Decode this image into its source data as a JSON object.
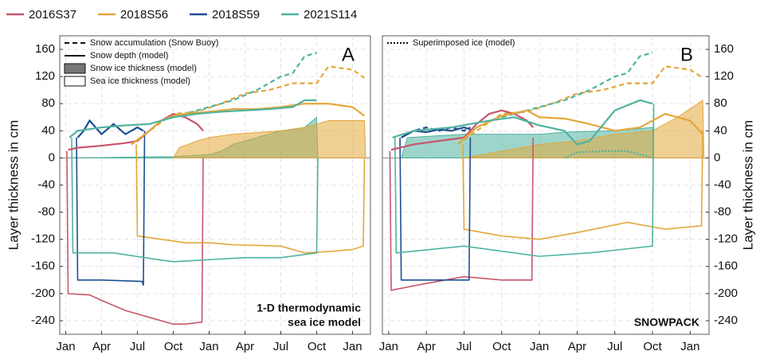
{
  "legend": [
    {
      "name": "2016S37",
      "color": "#c8566b"
    },
    {
      "name": "2018S56",
      "color": "#e3a73b"
    },
    {
      "name": "2018S59",
      "color": "#1d4f91"
    },
    {
      "name": "2021S114",
      "color": "#4fb3a0"
    }
  ],
  "chart_data": [
    {
      "type": "line",
      "panel": "A",
      "y_label": "Layer thickness in cm",
      "y_axis_side": "left",
      "annotation": [
        "1-D thermodynamic",
        "sea ice model"
      ],
      "style_legend": [
        {
          "label": "Snow accumulation (Snow Buoy)",
          "style": "dashed"
        },
        {
          "label": "Snow depth (model)",
          "style": "solid"
        },
        {
          "label": "Snow ice thickness (model)",
          "style": "fill"
        },
        {
          "label": "Sea ice thickness (model)",
          "style": "ice"
        }
      ],
      "xlim": [
        -0.5,
        25.5
      ],
      "xticks": [
        {
          "value": 0,
          "label": "Jan"
        },
        {
          "value": 3,
          "label": "Apr"
        },
        {
          "value": 6,
          "label": "Jul"
        },
        {
          "value": 9,
          "label": "Oct"
        },
        {
          "value": 12,
          "label": "Jan"
        },
        {
          "value": 15,
          "label": "Apr"
        },
        {
          "value": 18,
          "label": "Jul"
        },
        {
          "value": 21,
          "label": "Oct"
        },
        {
          "value": 24,
          "label": "Jan"
        }
      ],
      "ylim": [
        -260,
        180
      ],
      "yticks": [
        160,
        120,
        80,
        40,
        0,
        -40,
        -80,
        -120,
        -160,
        -200,
        -240
      ],
      "grid": true,
      "series": [
        {
          "name": "2021S114",
          "color": "#4fb3a0",
          "style": "fill",
          "x": [
            0.3,
            9,
            12,
            13,
            14,
            16,
            18,
            20,
            21,
            21.1
          ],
          "values": [
            0,
            2,
            5,
            10,
            20,
            30,
            40,
            45,
            60,
            0
          ]
        },
        {
          "name": "2018S56",
          "color": "#e3a73b",
          "style": "fill",
          "x": [
            9,
            9.5,
            11,
            12,
            14,
            18,
            20,
            21,
            22,
            25,
            25.1
          ],
          "values": [
            0,
            15,
            25,
            30,
            35,
            40,
            45,
            50,
            55,
            55,
            0
          ]
        },
        {
          "name": "2016S37",
          "color": "#c8566b",
          "style": "ice",
          "x": [
            0.1,
            0.2,
            2,
            3,
            5,
            7,
            9,
            10,
            11.4,
            11.5
          ],
          "values": [
            10,
            -200,
            -202,
            -210,
            -225,
            -235,
            -245,
            -245,
            -242,
            0
          ]
        },
        {
          "name": "2018S56",
          "color": "#e3a73b",
          "style": "ice",
          "x": [
            5.9,
            6,
            8,
            10,
            12,
            14,
            18,
            20,
            22,
            24,
            24.9,
            25
          ],
          "values": [
            20,
            -115,
            -120,
            -125,
            -125,
            -128,
            -130,
            -140,
            -138,
            -135,
            -130,
            0
          ]
        },
        {
          "name": "2018S59",
          "color": "#1d4f91",
          "style": "ice",
          "x": [
            0.9,
            1,
            3,
            6.4,
            6.5,
            6.6
          ],
          "values": [
            30,
            -180,
            -180,
            -182,
            -188,
            40
          ]
        },
        {
          "name": "2021S114",
          "color": "#4fb3a0",
          "style": "ice",
          "x": [
            0.5,
            0.6,
            4,
            7,
            9,
            12,
            15,
            18,
            21,
            21.1
          ],
          "values": [
            30,
            -140,
            -140,
            -148,
            -153,
            -150,
            -147,
            -147,
            -140,
            0
          ]
        },
        {
          "name": "2018S56",
          "color": "#e3a73b",
          "style": "dashed",
          "x": [
            5.5,
            7,
            9,
            11,
            13,
            15,
            17,
            19,
            21,
            22,
            24,
            25
          ],
          "values": [
            20,
            40,
            65,
            68,
            80,
            95,
            100,
            110,
            110,
            135,
            130,
            118
          ]
        },
        {
          "name": "2021S114",
          "color": "#4fb3a0",
          "style": "dashed",
          "x": [
            9,
            12,
            14,
            16,
            18,
            19,
            20,
            21
          ],
          "values": [
            60,
            75,
            85,
            100,
            120,
            125,
            150,
            155
          ]
        },
        {
          "name": "2016S37",
          "color": "#c8566b",
          "style": "solid",
          "x": [
            0.2,
            1,
            3,
            5,
            6,
            7,
            8,
            9,
            10,
            11,
            11.5
          ],
          "values": [
            12,
            15,
            18,
            22,
            25,
            40,
            55,
            65,
            60,
            50,
            40
          ]
        },
        {
          "name": "2018S56",
          "color": "#e3a73b",
          "style": "solid",
          "x": [
            5.5,
            7,
            8,
            9,
            10,
            12,
            14,
            16,
            18,
            20,
            22,
            24,
            25
          ],
          "values": [
            20,
            40,
            55,
            62,
            65,
            68,
            72,
            72,
            75,
            80,
            80,
            75,
            62
          ]
        },
        {
          "name": "2018S59",
          "color": "#1d4f91",
          "style": "solid",
          "x": [
            1,
            1.5,
            2,
            3,
            4,
            5,
            6,
            6.5
          ],
          "values": [
            30,
            40,
            55,
            35,
            50,
            35,
            45,
            40
          ]
        },
        {
          "name": "2021S114",
          "color": "#4fb3a0",
          "style": "solid",
          "x": [
            0.3,
            1,
            3,
            5,
            7,
            9,
            11,
            13,
            15,
            17,
            19,
            20,
            21
          ],
          "values": [
            30,
            40,
            45,
            48,
            50,
            60,
            65,
            68,
            70,
            72,
            75,
            85,
            85
          ]
        }
      ]
    },
    {
      "type": "line",
      "panel": "B",
      "y_label": "Layer thickness in cm",
      "y_axis_side": "right",
      "annotation": [
        "SNOWPACK"
      ],
      "style_legend": [
        {
          "label": "Superimposed ice (model)",
          "style": "dotted"
        }
      ],
      "xlim": [
        -0.5,
        25.5
      ],
      "xticks": [
        {
          "value": 0,
          "label": "Jan"
        },
        {
          "value": 3,
          "label": "Apr"
        },
        {
          "value": 6,
          "label": "Jul"
        },
        {
          "value": 9,
          "label": "Oct"
        },
        {
          "value": 12,
          "label": "Jan"
        },
        {
          "value": 15,
          "label": "Apr"
        },
        {
          "value": 18,
          "label": "Jul"
        },
        {
          "value": 21,
          "label": "Oct"
        },
        {
          "value": 24,
          "label": "Jan"
        }
      ],
      "ylim": [
        -260,
        180
      ],
      "yticks": [
        160,
        120,
        80,
        40,
        0,
        -40,
        -80,
        -120,
        -160,
        -200,
        -240
      ],
      "grid": true,
      "series": [
        {
          "name": "2021S114",
          "color": "#4fb3a0",
          "style": "fill",
          "x": [
            1,
            1.5,
            6,
            12,
            14,
            18,
            21,
            21.1
          ],
          "values": [
            0,
            30,
            35,
            35,
            38,
            40,
            45,
            0
          ]
        },
        {
          "name": "2018S56",
          "color": "#e3a73b",
          "style": "fill",
          "x": [
            6,
            12,
            15,
            18,
            21,
            23,
            25,
            25.1
          ],
          "values": [
            0,
            20,
            25,
            35,
            40,
            60,
            85,
            0
          ]
        },
        {
          "name": "2021S114",
          "color": "#4fb3a0",
          "style": "dotted",
          "x": [
            14,
            15,
            17,
            19,
            20,
            21
          ],
          "values": [
            0,
            8,
            10,
            10,
            5,
            0
          ]
        },
        {
          "name": "2016S37",
          "color": "#c8566b",
          "style": "ice",
          "x": [
            0.1,
            0.2,
            3,
            6,
            9,
            11.4,
            11.5
          ],
          "values": [
            10,
            -195,
            -185,
            -175,
            -180,
            -180,
            30
          ]
        },
        {
          "name": "2018S56",
          "color": "#e3a73b",
          "style": "ice",
          "x": [
            5.9,
            6,
            9,
            12,
            15,
            19,
            22,
            24.9,
            25
          ],
          "values": [
            20,
            -105,
            -115,
            -120,
            -110,
            -95,
            -105,
            -100,
            40
          ]
        },
        {
          "name": "2018S59",
          "color": "#1d4f91",
          "style": "ice",
          "x": [
            0.9,
            1,
            6.4,
            6.5
          ],
          "values": [
            30,
            -180,
            -180,
            30
          ]
        },
        {
          "name": "2021S114",
          "color": "#4fb3a0",
          "style": "ice",
          "x": [
            0.5,
            0.6,
            6,
            12,
            16,
            21,
            21.1
          ],
          "values": [
            30,
            -140,
            -130,
            -145,
            -140,
            -130,
            80
          ]
        },
        {
          "name": "2018S56",
          "color": "#e3a73b",
          "style": "dashed",
          "x": [
            5.5,
            7,
            9,
            11,
            13,
            15,
            17,
            19,
            21,
            22,
            24,
            25
          ],
          "values": [
            20,
            40,
            65,
            68,
            80,
            95,
            100,
            110,
            110,
            135,
            130,
            118
          ]
        },
        {
          "name": "2021S114",
          "color": "#4fb3a0",
          "style": "dashed",
          "x": [
            9,
            12,
            14,
            16,
            18,
            19,
            20,
            21
          ],
          "values": [
            60,
            75,
            85,
            100,
            120,
            125,
            150,
            155
          ]
        },
        {
          "name": "2018S59",
          "color": "#1d4f91",
          "style": "dashed",
          "x": [
            1,
            2,
            3,
            4,
            5,
            6,
            6.5
          ],
          "values": [
            30,
            40,
            45,
            40,
            45,
            40,
            45
          ]
        },
        {
          "name": "2016S37",
          "color": "#c8566b",
          "style": "solid",
          "x": [
            0.2,
            2,
            4,
            6,
            7,
            8,
            9,
            10,
            11,
            11.5
          ],
          "values": [
            12,
            20,
            25,
            30,
            50,
            65,
            70,
            65,
            55,
            45
          ]
        },
        {
          "name": "2018S56",
          "color": "#e3a73b",
          "style": "solid",
          "x": [
            5.5,
            7,
            9,
            11,
            12,
            14,
            16,
            18,
            20,
            22,
            24,
            25
          ],
          "values": [
            20,
            45,
            62,
            70,
            60,
            58,
            50,
            40,
            45,
            65,
            55,
            35
          ]
        },
        {
          "name": "2018S59",
          "color": "#1d4f91",
          "style": "solid",
          "x": [
            1,
            2,
            3,
            4,
            5,
            6,
            6.5
          ],
          "values": [
            30,
            40,
            38,
            42,
            40,
            45,
            42
          ]
        },
        {
          "name": "2021S114",
          "color": "#4fb3a0",
          "style": "solid",
          "x": [
            0.3,
            2,
            5,
            8,
            10,
            12,
            14,
            15,
            16,
            18,
            20,
            21
          ],
          "values": [
            30,
            40,
            45,
            55,
            60,
            48,
            40,
            20,
            25,
            70,
            85,
            80
          ]
        }
      ]
    }
  ]
}
